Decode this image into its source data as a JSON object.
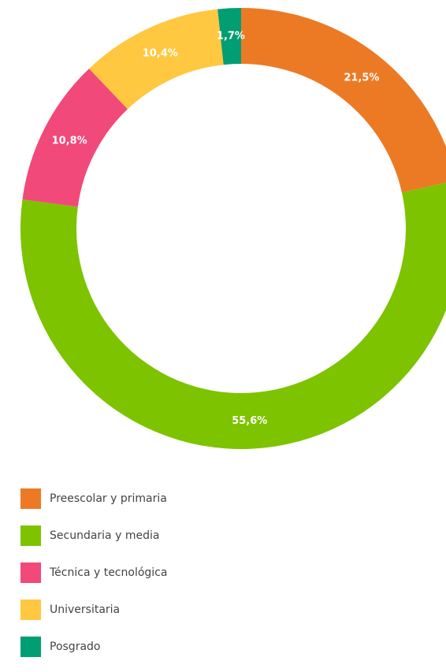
{
  "chart_data": {
    "type": "pie",
    "subtype": "donut",
    "title": "",
    "categories": [
      "Preescolar y primaria",
      "Secundaria y media",
      "Técnica y tecnológica",
      "Universitaria",
      "Posgrado"
    ],
    "values": [
      21.5,
      55.6,
      10.8,
      10.4,
      1.7
    ],
    "value_labels": [
      "21,5%",
      "55,6%",
      "10,8%",
      "10,4%",
      "1,7%"
    ],
    "colors": [
      "#EC7A25",
      "#7DC300",
      "#F14979",
      "#FFC840",
      "#009E72"
    ],
    "start_angle": "12 o'clock",
    "direction": "clockwise",
    "legend_position": "bottom-left"
  }
}
